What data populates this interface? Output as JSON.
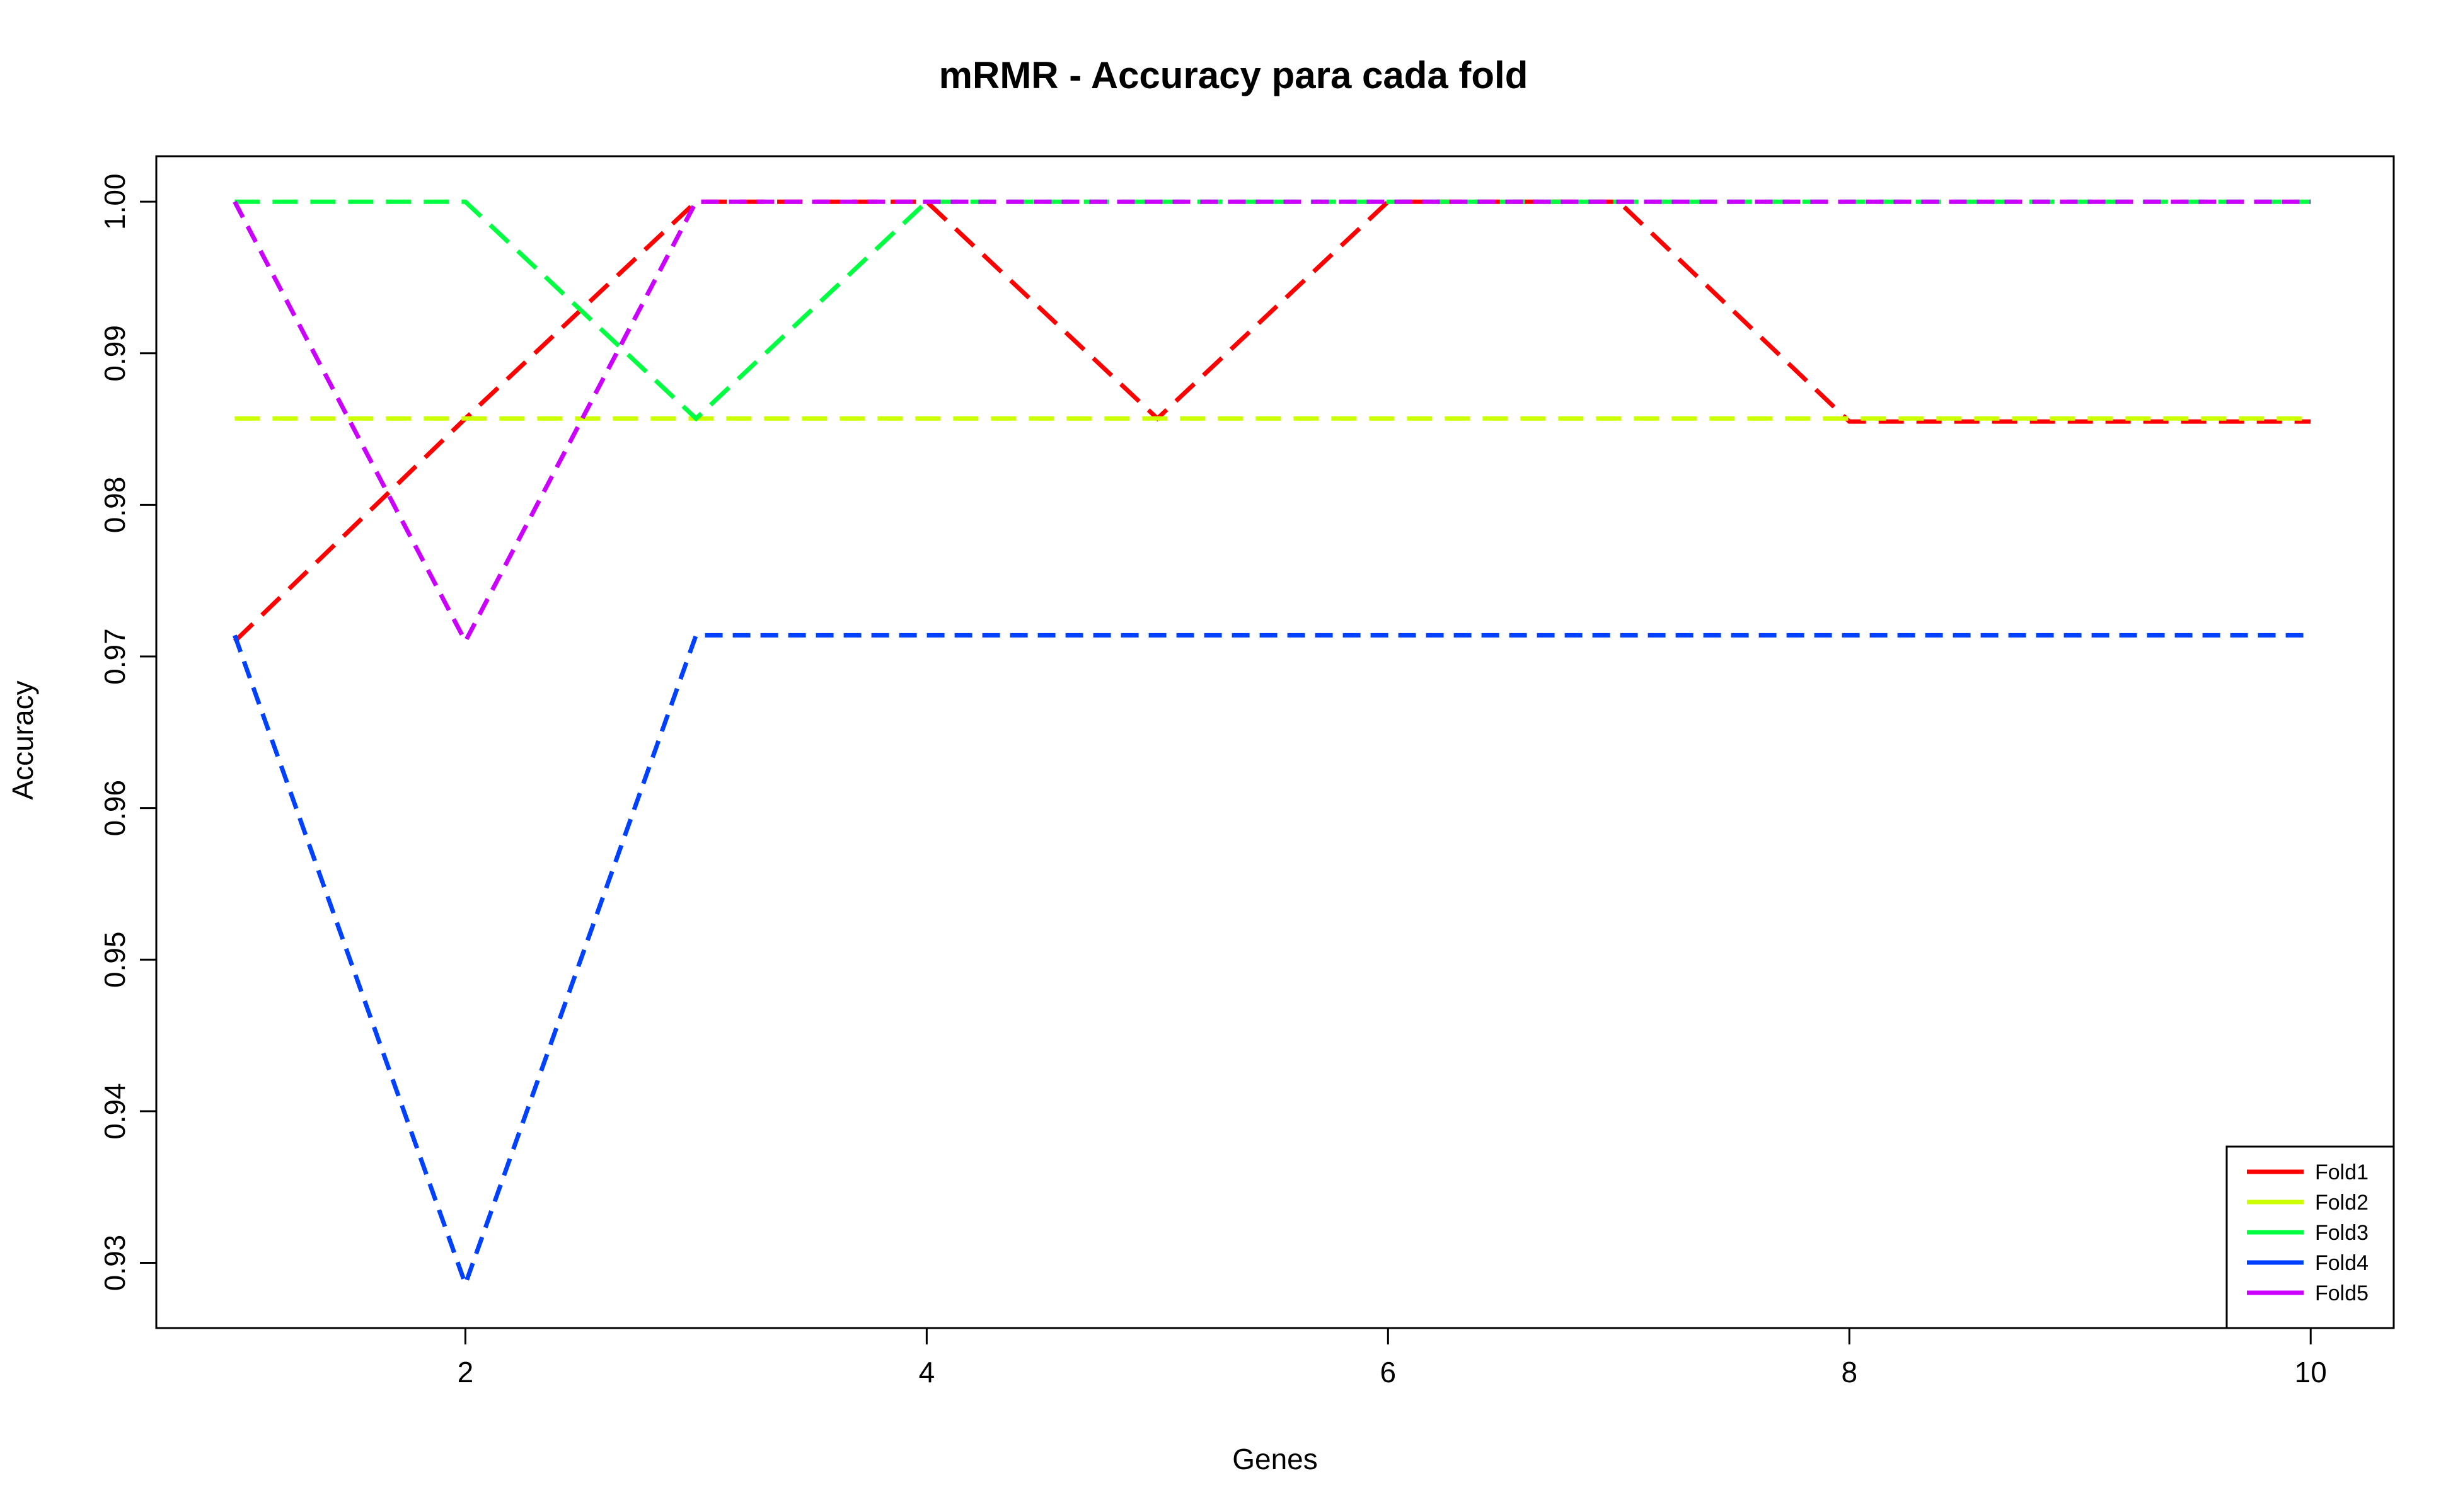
{
  "chart_data": {
    "type": "line",
    "title": "mRMR - Accuracy para cada fold",
    "xlabel": "Genes",
    "ylabel": "Accuracy",
    "xlim": [
      0.66,
      10.36
    ],
    "ylim": [
      0.9257,
      1.003
    ],
    "xticks": [
      2,
      4,
      6,
      8,
      10
    ],
    "yticks": [
      0.93,
      0.94,
      0.95,
      0.96,
      0.97,
      0.98,
      0.99,
      1.0
    ],
    "ytick_labels": [
      "0.93",
      "0.94",
      "0.95",
      "0.96",
      "0.97",
      "0.98",
      "0.99",
      "1.00"
    ],
    "x": [
      1,
      2,
      3,
      4,
      5,
      6,
      7,
      8,
      9,
      10
    ],
    "legend_position": "bottom-right",
    "grid": false,
    "series": [
      {
        "name": "Fold1",
        "color": "#ff0000",
        "dash": "long",
        "values": [
          0.971,
          0.9857,
          1.0,
          1.0,
          0.9857,
          1.0,
          1.0,
          0.9855,
          0.9855,
          0.9855
        ]
      },
      {
        "name": "Fold2",
        "color": "#ccff00",
        "dash": "long",
        "values": [
          0.9857,
          0.9857,
          0.9857,
          0.9857,
          0.9857,
          0.9857,
          0.9857,
          0.9857,
          0.9857,
          0.9857
        ]
      },
      {
        "name": "Fold3",
        "color": "#00ff40",
        "dash": "long",
        "values": [
          1.0,
          1.0,
          0.9857,
          1.0,
          1.0,
          1.0,
          1.0,
          1.0,
          1.0,
          1.0
        ]
      },
      {
        "name": "Fold4",
        "color": "#0040ff",
        "dash": "short",
        "values": [
          0.9714,
          0.9286,
          0.9714,
          0.9714,
          0.9714,
          0.9714,
          0.9714,
          0.9714,
          0.9714,
          0.9714
        ]
      },
      {
        "name": "Fold5",
        "color": "#cc00ff",
        "dash": "short",
        "values": [
          1.0,
          0.971,
          1.0,
          1.0,
          1.0,
          1.0,
          1.0,
          1.0,
          1.0,
          1.0
        ]
      }
    ]
  }
}
